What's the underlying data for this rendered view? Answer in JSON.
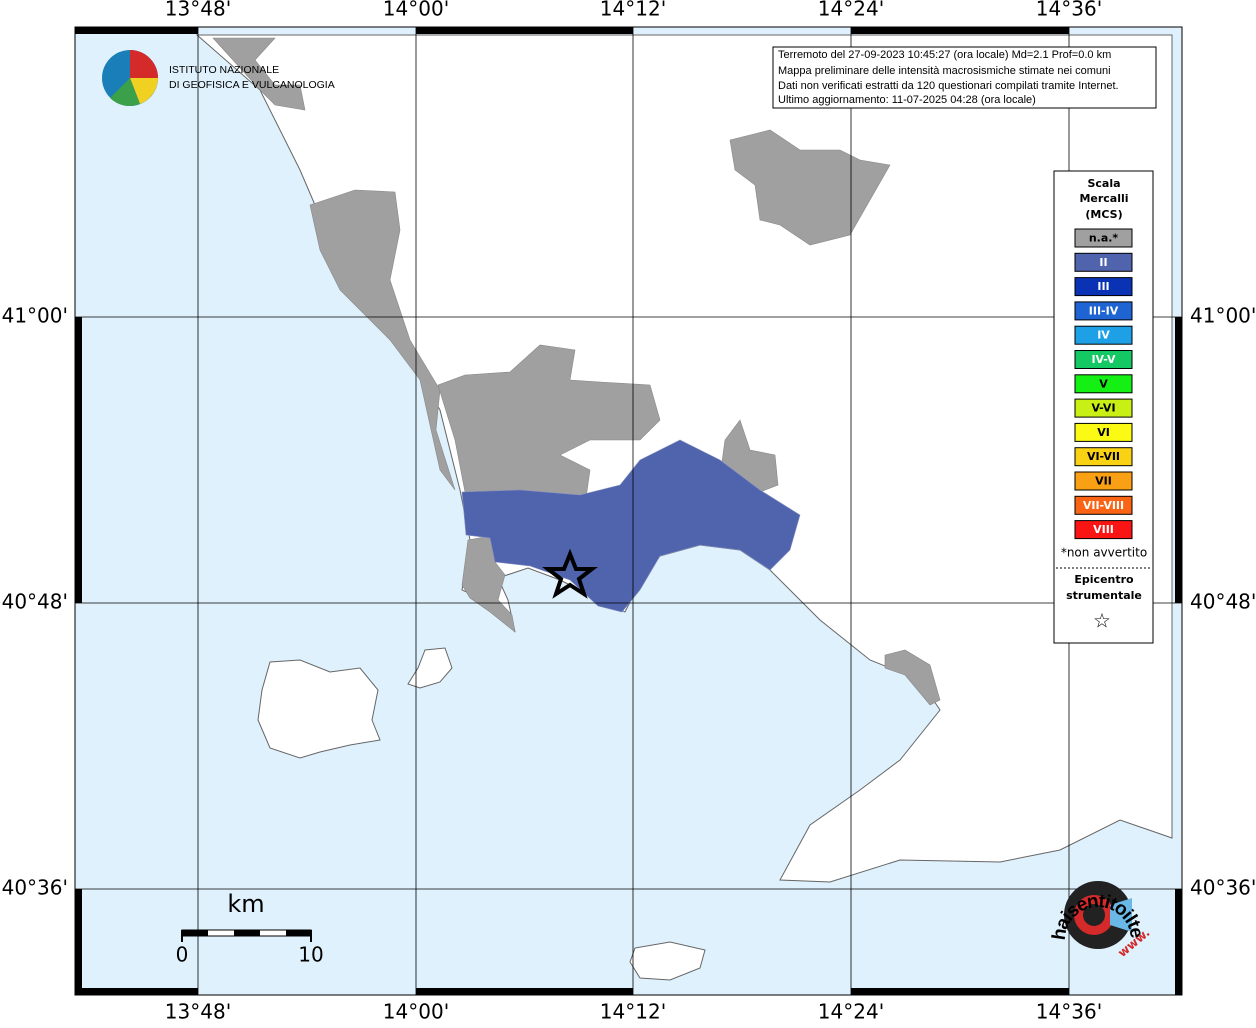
{
  "logo": {
    "line1": "ISTITUTO NAZIONALE",
    "line2": "DI GEOFISICA E VULCANOLOGIA"
  },
  "info": [
    "Terremoto del 27-09-2023 10:45:27 (ora locale) Md=2.1 Prof=0.0 km",
    "Mappa preliminare delle intensità macrosismiche stimate nei comuni",
    "Dati non verificati estratti da 120 questionari compilati tramite Internet.",
    "Ultimo aggiornamento: 11-07-2025 04:28 (ora locale)"
  ],
  "axes": {
    "longitude": [
      "13°48'",
      "14°00'",
      "14°12'",
      "14°24'",
      "14°36'"
    ],
    "latitude": [
      "41°00'",
      "40°48'",
      "40°36'"
    ]
  },
  "legend": {
    "title": [
      "Scala",
      "Mercalli",
      "(MCS)"
    ],
    "items": [
      {
        "label": "n.a.*",
        "color": "#a0a0a0"
      },
      {
        "label": "II",
        "color": "#5064ae"
      },
      {
        "label": "III",
        "color": "#0a32b4"
      },
      {
        "label": "III-IV",
        "color": "#1e64d2"
      },
      {
        "label": "IV",
        "color": "#1ea0e6"
      },
      {
        "label": "IV-V",
        "color": "#14c864"
      },
      {
        "label": "V",
        "color": "#14f014"
      },
      {
        "label": "V-VI",
        "color": "#c8f014"
      },
      {
        "label": "VI",
        "color": "#fafa14"
      },
      {
        "label": "VI-VII",
        "color": "#fad214"
      },
      {
        "label": "VII",
        "color": "#faa014"
      },
      {
        "label": "VII-VIII",
        "color": "#fa6414"
      },
      {
        "label": "VIII",
        "color": "#fa1414"
      }
    ],
    "note": "*non avvertito",
    "epicenter": [
      "Epicentro",
      "strumentale"
    ],
    "epicenter_symbol": "☆"
  },
  "scale_bar": {
    "unit": "km",
    "labels": [
      0,
      10
    ]
  },
  "badge": {
    "text": "haisentitoilterremoto.it",
    "prefix": "www."
  }
}
